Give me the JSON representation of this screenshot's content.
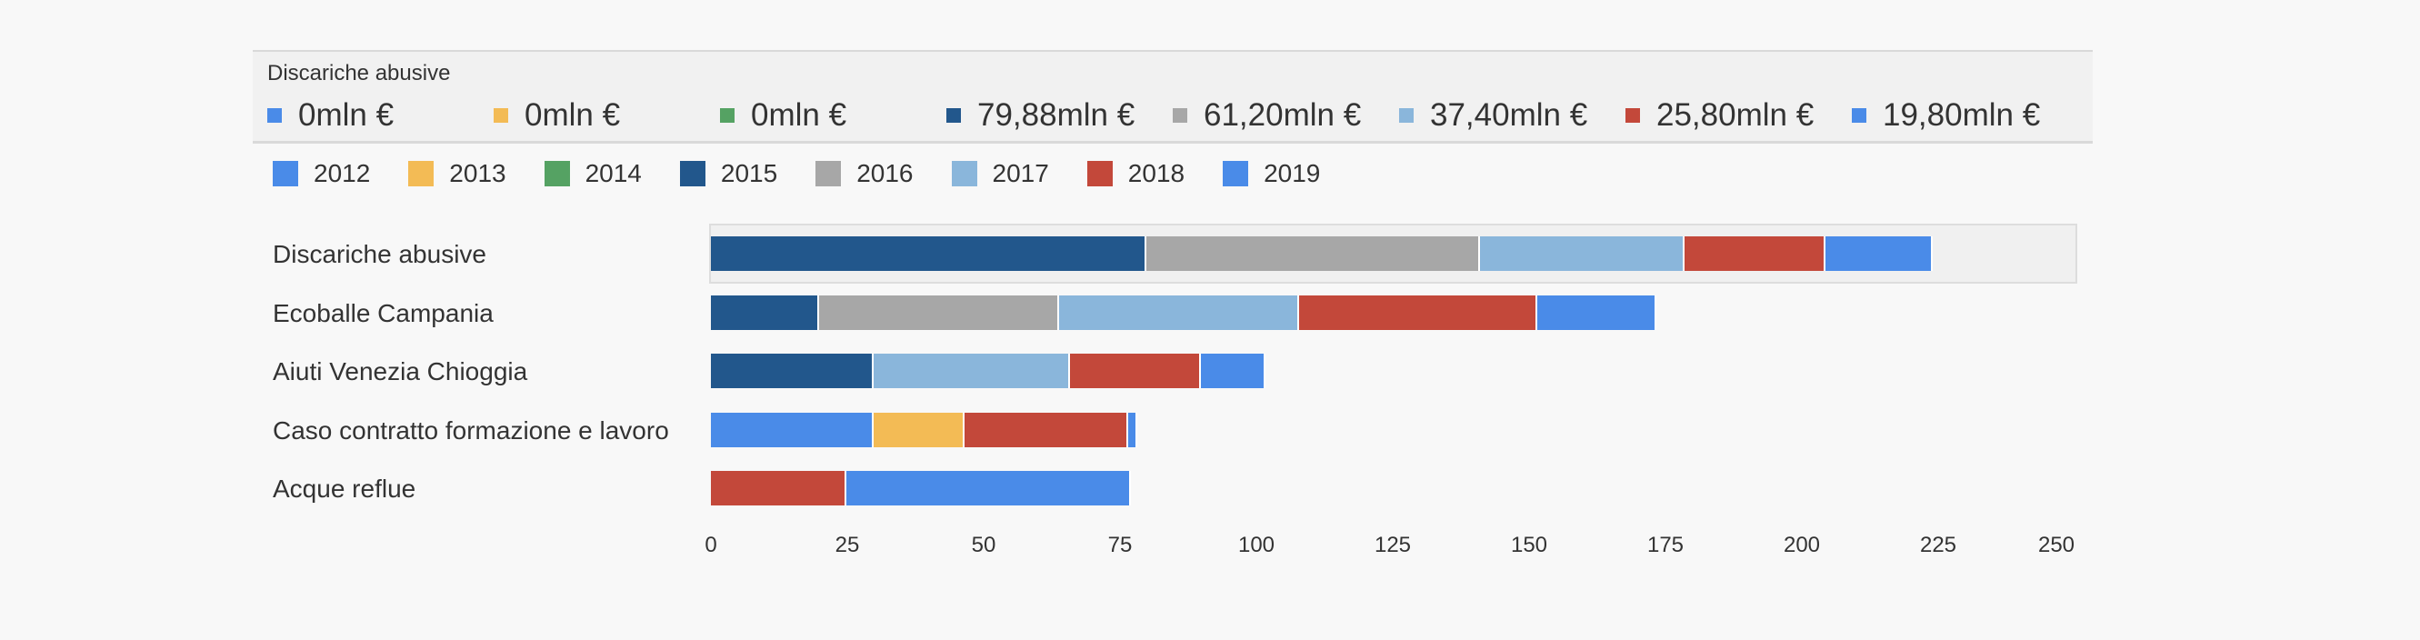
{
  "tooltip": {
    "title": "Discariche abusive",
    "values": [
      {
        "series": "2012",
        "text": "0mln €",
        "color": "#4a8be8"
      },
      {
        "series": "2013",
        "text": "0mln €",
        "color": "#f3bb55"
      },
      {
        "series": "2014",
        "text": "0mln €",
        "color": "#55a263"
      },
      {
        "series": "2015",
        "text": "79,88mln €",
        "color": "#22578c"
      },
      {
        "series": "2016",
        "text": "61,20mln €",
        "color": "#a7a7a7"
      },
      {
        "series": "2017",
        "text": "37,40mln €",
        "color": "#8ab6db"
      },
      {
        "series": "2018",
        "text": "25,80mln €",
        "color": "#c3483a"
      },
      {
        "series": "2019",
        "text": "19,80mln €",
        "color": "#4a8be8"
      }
    ]
  },
  "chart_data": {
    "type": "bar",
    "orientation": "horizontal",
    "stacked": true,
    "title": "",
    "xlabel": "",
    "ylabel": "",
    "xlim": [
      0,
      250
    ],
    "x_ticks": [
      "0",
      "25",
      "50",
      "75",
      "100",
      "125",
      "150",
      "175",
      "200",
      "225",
      "250"
    ],
    "legend_position": "top-left",
    "highlighted_category": "Discariche abusive",
    "categories": [
      "Discariche abusive",
      "Ecoballe Campania",
      "Aiuti Venezia Chioggia",
      "Caso contratto formazione e lavoro",
      "Acque reflue"
    ],
    "series": [
      {
        "name": "2012",
        "color": "#4a8be8",
        "values": [
          0,
          0,
          0,
          29.8,
          0
        ]
      },
      {
        "name": "2013",
        "color": "#f3bb55",
        "values": [
          0,
          0,
          0,
          16.7,
          0
        ]
      },
      {
        "name": "2014",
        "color": "#55a263",
        "values": [
          0,
          0,
          0,
          0,
          0
        ]
      },
      {
        "name": "2015",
        "color": "#22578c",
        "values": [
          79.88,
          19.8,
          29.8,
          0,
          0
        ]
      },
      {
        "name": "2016",
        "color": "#a7a7a7",
        "values": [
          61.2,
          44.0,
          0,
          0,
          0
        ]
      },
      {
        "name": "2017",
        "color": "#8ab6db",
        "values": [
          37.4,
          44.0,
          36.0,
          0,
          0
        ]
      },
      {
        "name": "2018",
        "color": "#c3483a",
        "values": [
          25.8,
          43.7,
          24.0,
          30.0,
          24.8
        ]
      },
      {
        "name": "2019",
        "color": "#4a8be8",
        "values": [
          19.8,
          21.8,
          11.8,
          1.6,
          52.2
        ]
      }
    ]
  }
}
